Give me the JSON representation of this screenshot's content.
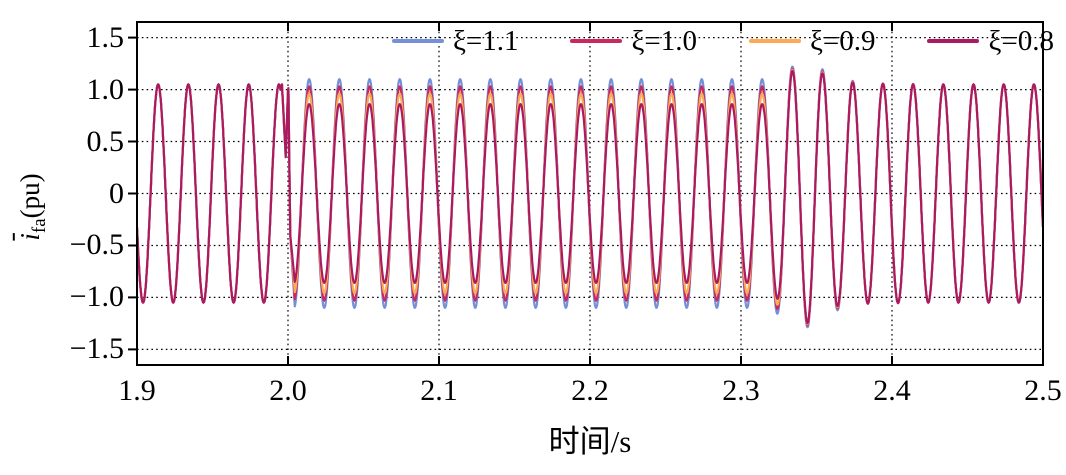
{
  "chart_data": {
    "type": "line",
    "title": "",
    "xlabel": "时间/s",
    "ylabel": "ī_fa(pu)",
    "ylabel_parts": {
      "base": "i",
      "overline": true,
      "subscript": "fa",
      "unit": "(pu)"
    },
    "xlim": [
      1.9,
      2.5
    ],
    "ylim": [
      -1.65,
      1.65
    ],
    "x_ticks": {
      "values": [
        1.9,
        2.0,
        2.1,
        2.2,
        2.3,
        2.4,
        2.5
      ],
      "labels": [
        "1.9",
        "2.0",
        "2.1",
        "2.2",
        "2.3",
        "2.4",
        "2.5"
      ]
    },
    "y_ticks": {
      "values": [
        1.5,
        1.0,
        0.5,
        0,
        -0.5,
        -1.0,
        -1.5
      ],
      "labels": [
        "1.5",
        "1.0",
        "0.5",
        "0",
        "−0.5",
        "−1.0",
        "−1.5"
      ]
    },
    "x_gridlines": [
      2.0,
      2.1,
      2.2,
      2.3,
      2.4
    ],
    "grid": {
      "style": "dotted",
      "color": "#000000"
    },
    "axes_color": "#000000",
    "legend": {
      "position": "top-inside-horizontal"
    },
    "signal": {
      "frequency_hz": 50,
      "phase_zero_s": 1.909,
      "sample_step_s": 0.00025
    },
    "series": [
      {
        "id": "xi-1.1",
        "label": "ξ=1.1",
        "color": "#7590d6",
        "steady_amplitude_pu": 1.05,
        "fault_amplitude_pu": 1.1,
        "envelope": [
          [
            1.9,
            1.05
          ],
          [
            1.996,
            1.05
          ],
          [
            2.004,
            1.1
          ],
          [
            2.315,
            1.1
          ],
          [
            2.334,
            1.22
          ],
          [
            2.3445,
            1.29
          ],
          [
            2.3545,
            1.19
          ],
          [
            2.3645,
            1.12
          ],
          [
            2.38,
            1.06
          ],
          [
            2.42,
            1.05
          ],
          [
            2.5,
            1.05
          ]
        ]
      },
      {
        "id": "xi-1.0",
        "label": "ξ=1.0",
        "color": "#c8295f",
        "steady_amplitude_pu": 1.05,
        "fault_amplitude_pu": 1.03,
        "envelope": [
          [
            1.9,
            1.05
          ],
          [
            1.996,
            1.05
          ],
          [
            2.004,
            1.03
          ],
          [
            2.315,
            1.03
          ],
          [
            2.334,
            1.2
          ],
          [
            2.3445,
            1.27
          ],
          [
            2.3545,
            1.17
          ],
          [
            2.3645,
            1.1
          ],
          [
            2.38,
            1.06
          ],
          [
            2.42,
            1.05
          ],
          [
            2.5,
            1.05
          ]
        ]
      },
      {
        "id": "xi-0.9",
        "label": "ξ=0.9",
        "color": "#fbab55",
        "steady_amplitude_pu": 1.05,
        "fault_amplitude_pu": 0.96,
        "envelope": [
          [
            1.9,
            1.05
          ],
          [
            1.996,
            1.05
          ],
          [
            2.004,
            0.96
          ],
          [
            2.315,
            0.96
          ],
          [
            2.334,
            1.19
          ],
          [
            2.3445,
            1.26
          ],
          [
            2.3545,
            1.16
          ],
          [
            2.3645,
            1.09
          ],
          [
            2.38,
            1.06
          ],
          [
            2.42,
            1.05
          ],
          [
            2.5,
            1.05
          ]
        ]
      },
      {
        "id": "xi-0.8",
        "label": "ξ=0.8",
        "color": "#aa1a63",
        "steady_amplitude_pu": 1.05,
        "fault_amplitude_pu": 0.86,
        "envelope": [
          [
            1.9,
            1.05
          ],
          [
            1.996,
            1.05
          ],
          [
            2.004,
            0.86
          ],
          [
            2.315,
            0.86
          ],
          [
            2.334,
            1.18
          ],
          [
            2.3445,
            1.25
          ],
          [
            2.3545,
            1.15
          ],
          [
            2.3645,
            1.08
          ],
          [
            2.38,
            1.06
          ],
          [
            2.42,
            1.05
          ],
          [
            2.5,
            1.05
          ]
        ]
      }
    ],
    "events": {
      "switch_transient": {
        "time_s": 2.0,
        "anchors": [
          [
            1.995,
            "auto"
          ],
          [
            1.996,
            1.05
          ],
          [
            1.9985,
            0.35
          ],
          [
            2.0002,
            1.07
          ],
          [
            2.0015,
            -0.4
          ],
          [
            2.0045,
            "auto"
          ]
        ]
      },
      "swing_disturbance": {
        "start_s": 2.315,
        "max_peak_pu": 1.2,
        "min_trough_pu": -1.27,
        "end_s": 2.42
      }
    }
  }
}
